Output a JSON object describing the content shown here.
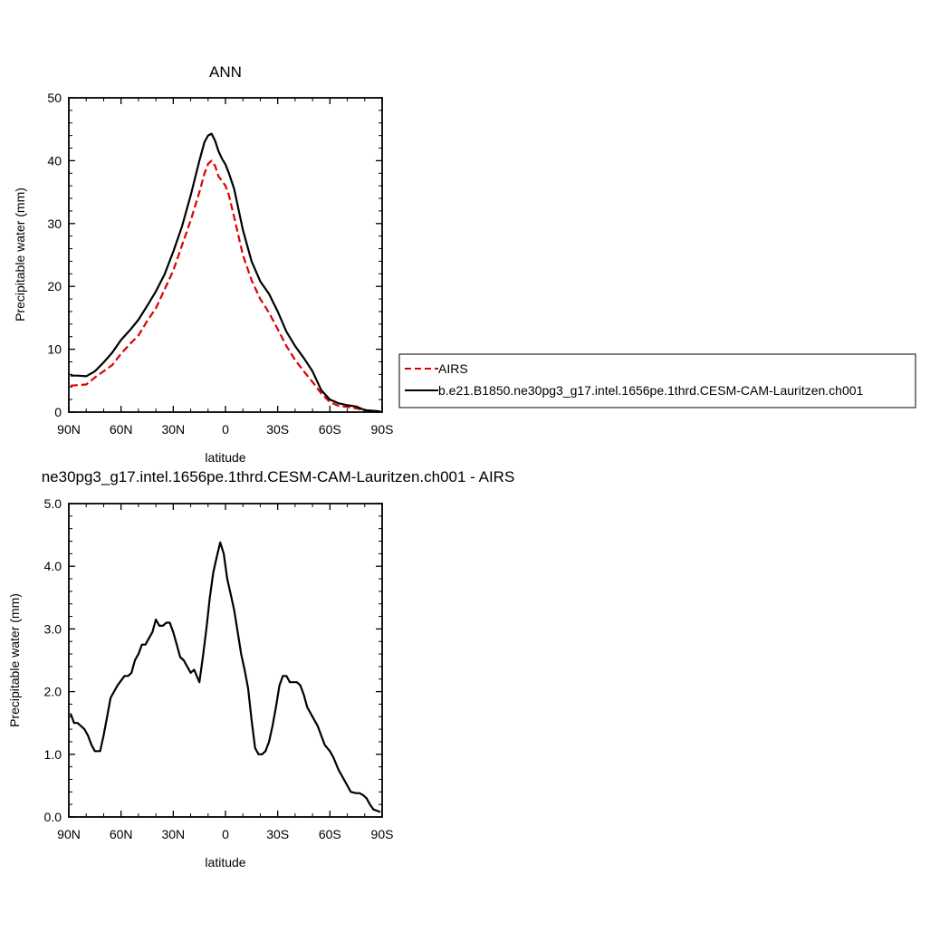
{
  "chart_data": [
    {
      "type": "line",
      "title": "ANN",
      "xlabel": "latitude",
      "ylabel": "Precipitable water (mm)",
      "xlim": [
        90,
        -90
      ],
      "ylim": [
        0,
        50
      ],
      "xticks": [
        90,
        60,
        30,
        0,
        -30,
        -60,
        -90
      ],
      "xtick_labels": [
        "90N",
        "60N",
        "30N",
        "0",
        "30S",
        "60S",
        "90S"
      ],
      "yticks": [
        0,
        10,
        20,
        30,
        40,
        50
      ],
      "ytick_labels": [
        "0",
        "10",
        "20",
        "30",
        "40",
        "50"
      ],
      "legend": {
        "placement": "outside-right"
      },
      "series": [
        {
          "name": "AIRS",
          "color": "#dd0000",
          "dash": "dashed",
          "x": [
            89,
            85,
            80,
            75,
            70,
            65,
            60,
            55,
            50,
            45,
            40,
            35,
            30,
            25,
            20,
            15,
            12,
            10,
            8,
            6,
            4,
            2,
            0,
            -2,
            -5,
            -10,
            -15,
            -20,
            -25,
            -30,
            -35,
            -40,
            -45,
            -50,
            -55,
            -60,
            -65,
            -70,
            -75,
            -80,
            -85,
            -89
          ],
          "y": [
            4.2,
            4.3,
            4.4,
            5.5,
            6.5,
            7.5,
            9.3,
            10.8,
            12.2,
            14.5,
            16.5,
            19.5,
            22.5,
            26.5,
            30.5,
            35.0,
            38.0,
            39.5,
            40.0,
            39.2,
            37.5,
            36.8,
            36.0,
            34.5,
            31.0,
            25.0,
            21.0,
            18.0,
            15.8,
            13.2,
            10.5,
            8.3,
            6.5,
            4.8,
            3.0,
            1.6,
            1.0,
            0.8,
            0.6,
            0.3,
            0.2,
            0.1
          ]
        },
        {
          "name": "b.e21.B1850.ne30pg3_g17.intel.1656pe.1thrd.CESM-CAM-Lauritzen.ch001",
          "color": "#000000",
          "dash": "solid",
          "x": [
            89,
            85,
            80,
            75,
            70,
            65,
            60,
            55,
            50,
            45,
            40,
            35,
            30,
            25,
            20,
            15,
            12,
            10,
            8,
            6,
            4,
            2,
            0,
            -2,
            -5,
            -10,
            -15,
            -20,
            -25,
            -30,
            -35,
            -40,
            -45,
            -50,
            -55,
            -60,
            -65,
            -70,
            -75,
            -80,
            -85,
            -89
          ],
          "y": [
            5.8,
            5.8,
            5.7,
            6.5,
            7.9,
            9.5,
            11.5,
            13.0,
            14.7,
            16.9,
            19.2,
            21.9,
            25.5,
            29.5,
            34.5,
            40.0,
            43.0,
            44.0,
            44.3,
            43.2,
            41.5,
            40.3,
            39.4,
            38.0,
            35.5,
            29.0,
            24.0,
            20.8,
            18.8,
            16.0,
            12.8,
            10.5,
            8.6,
            6.5,
            3.5,
            2.0,
            1.4,
            1.1,
            0.9,
            0.3,
            0.2,
            0.1
          ]
        }
      ]
    },
    {
      "type": "line",
      "title": "ne30pg3_g17.intel.1656pe.1thrd.CESM-CAM-Lauritzen.ch001 - AIRS",
      "xlabel": "latitude",
      "ylabel": "Precipitable water (mm)",
      "xlim": [
        90,
        -90
      ],
      "ylim": [
        0,
        5
      ],
      "xticks": [
        90,
        60,
        30,
        0,
        -30,
        -60,
        -90
      ],
      "xtick_labels": [
        "90N",
        "60N",
        "30N",
        "0",
        "30S",
        "60S",
        "90S"
      ],
      "yticks": [
        0,
        1,
        2,
        3,
        4,
        5
      ],
      "ytick_labels": [
        "0.0",
        "1.0",
        "2.0",
        "3.0",
        "4.0",
        "5.0"
      ],
      "series": [
        {
          "color": "#000000",
          "dash": "solid",
          "x": [
            89,
            87,
            85,
            83,
            81,
            79,
            77,
            75,
            72,
            70,
            68,
            66,
            62,
            58,
            56,
            54,
            52,
            50,
            48,
            46,
            44,
            42,
            40,
            38,
            36,
            34,
            32,
            30,
            28,
            26,
            24,
            22,
            20,
            18,
            15,
            13,
            11,
            9,
            7,
            5,
            3,
            1,
            -1,
            -3,
            -5,
            -7,
            -9,
            -11,
            -13,
            -15,
            -17,
            -19,
            -21,
            -23,
            -25,
            -27,
            -29,
            -31,
            -33,
            -35,
            -37,
            -39,
            -41,
            -43,
            -45,
            -47,
            -50,
            -53,
            -55,
            -57,
            -60,
            -62,
            -65,
            -67,
            -70,
            -72,
            -75,
            -77,
            -79,
            -81,
            -83,
            -85,
            -87,
            -89
          ],
          "y": [
            1.65,
            1.5,
            1.5,
            1.45,
            1.4,
            1.3,
            1.15,
            1.05,
            1.05,
            1.3,
            1.6,
            1.9,
            2.1,
            2.25,
            2.25,
            2.3,
            2.5,
            2.6,
            2.75,
            2.75,
            2.85,
            2.95,
            3.15,
            3.05,
            3.05,
            3.1,
            3.1,
            2.95,
            2.75,
            2.55,
            2.5,
            2.4,
            2.3,
            2.35,
            2.15,
            2.55,
            3.0,
            3.5,
            3.9,
            4.15,
            4.38,
            4.2,
            3.8,
            3.55,
            3.3,
            2.95,
            2.6,
            2.35,
            2.05,
            1.55,
            1.1,
            1.0,
            1.0,
            1.05,
            1.2,
            1.45,
            1.75,
            2.1,
            2.25,
            2.25,
            2.15,
            2.15,
            2.15,
            2.1,
            1.95,
            1.75,
            1.6,
            1.45,
            1.3,
            1.15,
            1.05,
            0.95,
            0.75,
            0.65,
            0.5,
            0.4,
            0.38,
            0.38,
            0.35,
            0.3,
            0.2,
            0.12,
            0.1,
            0.08
          ]
        }
      ]
    }
  ]
}
